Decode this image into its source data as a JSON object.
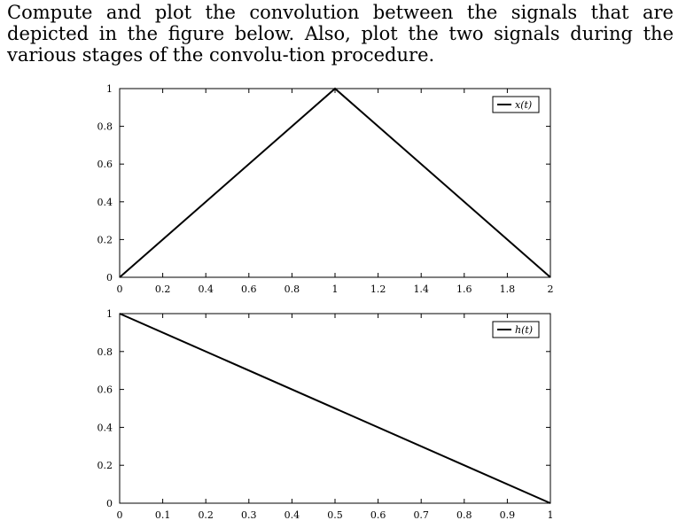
{
  "problem": {
    "text": "Compute and plot the convolution between the signals that are depicted in the figure below. Also, plot the two signals during the various stages of the convolu-tion procedure."
  },
  "chart_data": [
    {
      "type": "line",
      "series": [
        {
          "name": "x(t)",
          "x": [
            0,
            1,
            2
          ],
          "y": [
            0,
            1,
            0
          ],
          "color": "#000000"
        }
      ],
      "xlim": [
        0,
        2
      ],
      "ylim": [
        0,
        1
      ],
      "xticks": [
        0,
        0.2,
        0.4,
        0.6,
        0.8,
        1,
        1.2,
        1.4,
        1.6,
        1.8,
        2
      ],
      "xtick_labels": [
        "0",
        "0.2",
        "0.4",
        "0.6",
        "0.8",
        "1",
        "1.2",
        "1.4",
        "1.6",
        "1.8",
        "2"
      ],
      "yticks": [
        0,
        0.2,
        0.4,
        0.6,
        0.8,
        1
      ],
      "ytick_labels": [
        "0",
        "0.2",
        "0.4",
        "0.6",
        "0.8",
        "1"
      ],
      "legend": "top-right",
      "grid": false
    },
    {
      "type": "line",
      "series": [
        {
          "name": "h(t)",
          "x": [
            0,
            1
          ],
          "y": [
            1,
            0
          ],
          "color": "#000000"
        }
      ],
      "xlim": [
        0,
        1
      ],
      "ylim": [
        0,
        1
      ],
      "xticks": [
        0,
        0.1,
        0.2,
        0.3,
        0.4,
        0.5,
        0.6,
        0.7,
        0.8,
        0.9,
        1
      ],
      "xtick_labels": [
        "0",
        "0.1",
        "0.2",
        "0.3",
        "0.4",
        "0.5",
        "0.6",
        "0.7",
        "0.8",
        "0.9",
        "1"
      ],
      "yticks": [
        0,
        0.2,
        0.4,
        0.6,
        0.8,
        1
      ],
      "ytick_labels": [
        "0",
        "0.2",
        "0.4",
        "0.6",
        "0.8",
        "1"
      ],
      "legend": "top-right",
      "grid": false
    }
  ]
}
